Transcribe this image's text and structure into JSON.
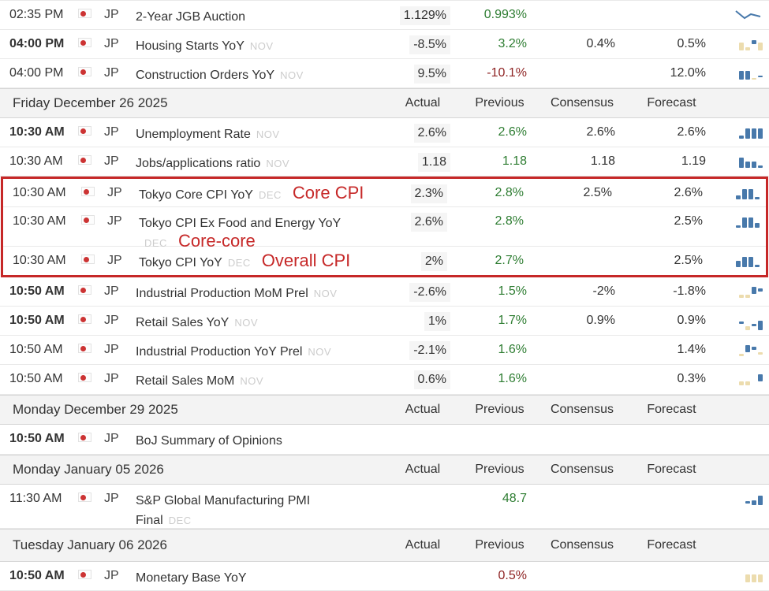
{
  "colors": {
    "positive_green": "#2e7d32",
    "negative_red": "#8e2323",
    "annotation_red": "#c62828",
    "bar_blue": "#4879ab",
    "bar_tan": "#ecdcae",
    "importance_dot": "#cc3333"
  },
  "column_headers": {
    "actual": "Actual",
    "previous": "Previous",
    "consensus": "Consensus",
    "forecast": "Forecast"
  },
  "annotations": {
    "core_cpi": "Core CPI",
    "core_core": "Core-core",
    "overall_cpi": "Overall CPI"
  },
  "sections": [
    {
      "type": "events",
      "rows": [
        {
          "time": "02:35 PM",
          "bold": false,
          "country": "JP",
          "event": "2-Year JGB Auction",
          "month": "",
          "actual": "1.129%",
          "previous": "0.993%",
          "prev_color": "g",
          "consensus": "",
          "forecast": "",
          "spark": {
            "kind": "line"
          }
        },
        {
          "time": "04:00 PM",
          "bold": true,
          "country": "JP",
          "event": "Housing Starts YoY",
          "month": "NOV",
          "actual": "-8.5%",
          "previous": "3.2%",
          "prev_color": "g",
          "consensus": "0.4%",
          "forecast": "0.5%",
          "spark": {
            "kind": "bars",
            "bars": [
              [
                10,
                "t",
                0
              ],
              [
                4,
                "t",
                0
              ],
              [
                5,
                "b",
                8
              ],
              [
                10,
                "t",
                0
              ]
            ]
          }
        },
        {
          "time": "04:00 PM",
          "bold": false,
          "country": "JP",
          "event": "Construction Orders YoY",
          "month": "NOV",
          "actual": "9.5%",
          "previous": "-10.1%",
          "prev_color": "r",
          "consensus": "",
          "forecast": "12.0%",
          "spark": {
            "kind": "bars",
            "bars": [
              [
                11,
                "b",
                0
              ],
              [
                11,
                "b",
                0
              ],
              [
                2,
                "t",
                0
              ],
              [
                2,
                "b",
                3
              ]
            ]
          }
        }
      ]
    },
    {
      "type": "date_header",
      "label": "Friday December 26 2025"
    },
    {
      "type": "events",
      "rows": [
        {
          "time": "10:30 AM",
          "bold": true,
          "country": "JP",
          "event": "Unemployment Rate",
          "month": "NOV",
          "actual": "2.6%",
          "previous": "2.6%",
          "prev_color": "g",
          "consensus": "2.6%",
          "forecast": "2.6%",
          "spark": {
            "kind": "bars",
            "bars": [
              [
                4,
                "b",
                0
              ],
              [
                13,
                "b",
                0
              ],
              [
                13,
                "b",
                0
              ],
              [
                13,
                "b",
                0
              ]
            ]
          }
        },
        {
          "time": "10:30 AM",
          "bold": false,
          "country": "JP",
          "event": "Jobs/applications ratio",
          "month": "NOV",
          "actual": "1.18",
          "previous": "1.18",
          "prev_color": "g",
          "consensus": "1.18",
          "forecast": "1.19",
          "spark": {
            "kind": "bars",
            "bars": [
              [
                13,
                "b",
                0
              ],
              [
                8,
                "b",
                0
              ],
              [
                8,
                "b",
                0
              ],
              [
                3,
                "b",
                0
              ]
            ]
          }
        }
      ]
    },
    {
      "type": "events",
      "highlight": true,
      "rows": [
        {
          "time": "10:30 AM",
          "bold": false,
          "country": "JP",
          "event": "Tokyo Core CPI YoY",
          "month": "DEC",
          "annotation": "Core CPI",
          "ann_line": 1,
          "h": 36,
          "actual": "2.3%",
          "previous": "2.8%",
          "prev_color": "g",
          "consensus": "2.5%",
          "forecast": "2.6%",
          "spark": {
            "kind": "bars",
            "bars": [
              [
                5,
                "b",
                0
              ],
              [
                13,
                "b",
                0
              ],
              [
                13,
                "b",
                0
              ],
              [
                3,
                "b",
                0
              ]
            ]
          }
        },
        {
          "time": "10:30 AM",
          "bold": false,
          "country": "JP",
          "event": "Tokyo CPI Ex Food and Energy YoY",
          "month": "DEC",
          "month_line": 2,
          "annotation": "Core-core",
          "ann_line": 2,
          "h": 50,
          "actual": "2.6%",
          "previous": "2.8%",
          "prev_color": "g",
          "consensus": "",
          "forecast": "2.5%",
          "spark": {
            "kind": "bars",
            "bars": [
              [
                3,
                "b",
                0
              ],
              [
                13,
                "b",
                0
              ],
              [
                13,
                "b",
                0
              ],
              [
                6,
                "b",
                0
              ]
            ]
          }
        },
        {
          "time": "10:30 AM",
          "bold": false,
          "country": "JP",
          "event": "Tokyo CPI YoY",
          "month": "DEC",
          "annotation": "Overall CPI",
          "ann_line": 1,
          "h": 36,
          "actual": "2%",
          "previous": "2.7%",
          "prev_color": "g",
          "consensus": "",
          "forecast": "2.5%",
          "spark": {
            "kind": "bars",
            "bars": [
              [
                8,
                "b",
                0
              ],
              [
                13,
                "b",
                0
              ],
              [
                13,
                "b",
                0
              ],
              [
                3,
                "b",
                0
              ]
            ]
          }
        }
      ]
    },
    {
      "type": "events",
      "rows": [
        {
          "time": "10:50 AM",
          "bold": true,
          "country": "JP",
          "event": "Industrial Production MoM Prel",
          "month": "NOV",
          "actual": "-2.6%",
          "previous": "1.5%",
          "prev_color": "g",
          "consensus": "-2%",
          "forecast": "-1.8%",
          "spark": {
            "kind": "bars",
            "bars": [
              [
                4,
                "t",
                0
              ],
              [
                4,
                "t",
                0
              ],
              [
                9,
                "b",
                5
              ],
              [
                4,
                "b",
                8
              ]
            ]
          }
        },
        {
          "time": "10:50 AM",
          "bold": true,
          "country": "JP",
          "event": "Retail Sales YoY",
          "month": "NOV",
          "actual": "1%",
          "previous": "1.7%",
          "prev_color": "g",
          "consensus": "0.9%",
          "forecast": "0.9%",
          "spark": {
            "kind": "bars",
            "bars": [
              [
                3,
                "b",
                8
              ],
              [
                5,
                "t",
                0
              ],
              [
                3,
                "b",
                5
              ],
              [
                12,
                "b",
                0
              ]
            ]
          }
        },
        {
          "time": "10:50 AM",
          "bold": false,
          "country": "JP",
          "event": "Industrial Production YoY Prel",
          "month": "NOV",
          "actual": "-2.1%",
          "previous": "1.6%",
          "prev_color": "g",
          "consensus": "",
          "forecast": "1.4%",
          "spark": {
            "kind": "bars",
            "bars": [
              [
                3,
                "t",
                0
              ],
              [
                9,
                "b",
                5
              ],
              [
                4,
                "b",
                8
              ],
              [
                3,
                "t",
                2
              ]
            ]
          }
        },
        {
          "time": "10:50 AM",
          "bold": false,
          "country": "JP",
          "event": "Retail Sales MoM",
          "month": "NOV",
          "actual": "0.6%",
          "previous": "1.6%",
          "prev_color": "g",
          "consensus": "",
          "forecast": "0.3%",
          "h": 38,
          "spark": {
            "kind": "bars",
            "bars": [
              [
                5,
                "t",
                0
              ],
              [
                5,
                "t",
                0
              ],
              [
                0,
                "t",
                0
              ],
              [
                9,
                "b",
                5
              ]
            ]
          }
        }
      ]
    },
    {
      "type": "date_header",
      "label": "Monday December 29 2025"
    },
    {
      "type": "events",
      "rows": [
        {
          "time": "10:50 AM",
          "bold": true,
          "country": "JP",
          "event": "BoJ Summary of Opinions",
          "month": "",
          "actual": "",
          "previous": "",
          "prev_color": "g",
          "consensus": "",
          "forecast": "",
          "h": 38
        }
      ]
    },
    {
      "type": "date_header",
      "label": "Monday January 05 2026"
    },
    {
      "type": "events",
      "rows": [
        {
          "time": "11:30 AM",
          "bold": false,
          "country": "JP",
          "event": "S&P Global Manufacturing PMI",
          "line2": "Final",
          "month": "DEC",
          "month_line": 2,
          "actual": "",
          "previous": "48.7",
          "prev_color": "g",
          "consensus": "",
          "forecast": "",
          "h": 56,
          "spark": {
            "kind": "bars",
            "bars": [
              [
                3,
                "b",
                2
              ],
              [
                6,
                "b",
                0
              ],
              [
                12,
                "b",
                0
              ]
            ]
          }
        }
      ]
    },
    {
      "type": "date_header",
      "label": "Tuesday January 06 2026",
      "h": 42
    },
    {
      "type": "events",
      "rows": [
        {
          "time": "10:50 AM",
          "bold": true,
          "country": "JP",
          "event": "Monetary Base YoY",
          "month": "",
          "actual": "",
          "previous": "0.5%",
          "prev_color": "r",
          "consensus": "",
          "forecast": "",
          "spark": {
            "kind": "bars",
            "bars": [
              [
                10,
                "t",
                0
              ],
              [
                10,
                "t",
                0
              ],
              [
                10,
                "t",
                0
              ]
            ]
          }
        }
      ]
    }
  ]
}
